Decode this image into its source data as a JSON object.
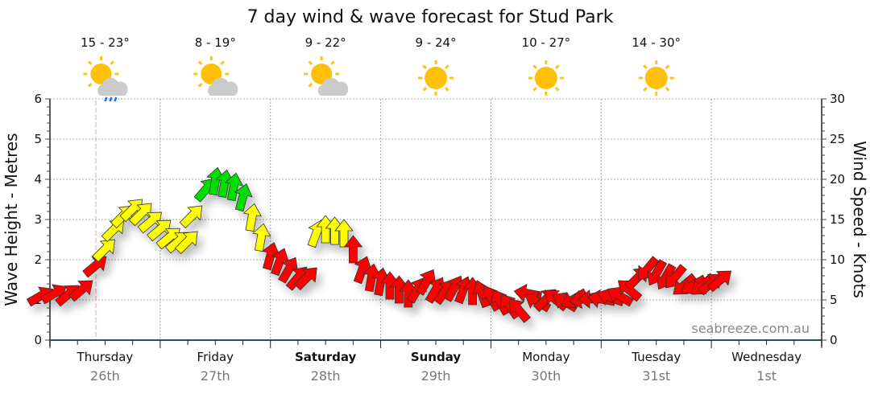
{
  "chart_data": {
    "type": "scatter",
    "title": "7 day wind & wave forecast for Stud Park",
    "ylabel_left": "Wave Height - Metres",
    "ylabel_right": "Wind Speed - Knots",
    "ylim_left": [
      0,
      6
    ],
    "ylim_right": [
      0,
      30
    ],
    "yticks_left": [
      "0",
      "1",
      "2",
      "3",
      "4",
      "5",
      "6"
    ],
    "yticks_right": [
      "0",
      "5",
      "10",
      "15",
      "20",
      "25",
      "30"
    ],
    "grid": true,
    "days": [
      {
        "name": "Thursday",
        "date": "26th",
        "bold": false,
        "temp": "15 - 23°",
        "icon": "sun-cloud-rain-icon"
      },
      {
        "name": "Friday",
        "date": "27th",
        "bold": false,
        "temp": "8 - 19°",
        "icon": "sun-cloud-icon"
      },
      {
        "name": "Saturday",
        "date": "28th",
        "bold": true,
        "temp": "9 - 22°",
        "icon": "sun-cloud-icon"
      },
      {
        "name": "Sunday",
        "date": "29th",
        "bold": true,
        "temp": "9 - 24°",
        "icon": "sun-icon"
      },
      {
        "name": "Monday",
        "date": "30th",
        "bold": false,
        "temp": "10 - 27°",
        "icon": "sun-icon"
      },
      {
        "name": "Tuesday",
        "date": "31st",
        "bold": false,
        "temp": "14 - 30°",
        "icon": "sun-icon"
      },
      {
        "name": "Wednesday",
        "date": "1st",
        "bold": false
      }
    ],
    "now_hour": 10,
    "colors": {
      "red": "#ff0000",
      "yellow": "#ffff00",
      "green": "#00dd00"
    },
    "wind_series_fields": [
      "hour_from_thursday",
      "knots",
      "direction_deg",
      "color"
    ],
    "wind": [
      [
        -2,
        5.5,
        60,
        "red"
      ],
      [
        1,
        5.8,
        60,
        "red"
      ],
      [
        4,
        5.7,
        50,
        "red"
      ],
      [
        7,
        6.3,
        50,
        "red"
      ],
      [
        10,
        9.3,
        50,
        "red"
      ],
      [
        12,
        11.3,
        45,
        "yellow"
      ],
      [
        14,
        13.8,
        45,
        "yellow"
      ],
      [
        16,
        15.5,
        45,
        "yellow"
      ],
      [
        18,
        16.3,
        45,
        "yellow"
      ],
      [
        20,
        15.8,
        45,
        "yellow"
      ],
      [
        22,
        14.8,
        50,
        "yellow"
      ],
      [
        24,
        13.8,
        50,
        "yellow"
      ],
      [
        26,
        12.8,
        50,
        "yellow"
      ],
      [
        28,
        12.3,
        50,
        "yellow"
      ],
      [
        30,
        12.3,
        45,
        "yellow"
      ],
      [
        31,
        15.5,
        45,
        "yellow"
      ],
      [
        34,
        18.8,
        40,
        "green"
      ],
      [
        36,
        19.8,
        10,
        "green"
      ],
      [
        38,
        19.5,
        10,
        "green"
      ],
      [
        40,
        19.1,
        10,
        "green"
      ],
      [
        42,
        17.8,
        15,
        "green"
      ],
      [
        44,
        15.3,
        10,
        "yellow"
      ],
      [
        46,
        12.8,
        10,
        "yellow"
      ],
      [
        48,
        10.5,
        15,
        "red"
      ],
      [
        50,
        9.8,
        20,
        "red"
      ],
      [
        52,
        8.8,
        30,
        "red"
      ],
      [
        54,
        7.8,
        40,
        "red"
      ],
      [
        56,
        7.8,
        45,
        "red"
      ],
      [
        58,
        13.3,
        20,
        "yellow"
      ],
      [
        60,
        13.8,
        0,
        "yellow"
      ],
      [
        62,
        13.6,
        0,
        "yellow"
      ],
      [
        64,
        13.3,
        0,
        "yellow"
      ],
      [
        66,
        11.3,
        0,
        "red"
      ],
      [
        68,
        8.8,
        20,
        "red"
      ],
      [
        70,
        7.8,
        10,
        "red"
      ],
      [
        72,
        7.3,
        10,
        "red"
      ],
      [
        74,
        6.8,
        0,
        "red"
      ],
      [
        76,
        6.3,
        0,
        "red"
      ],
      [
        78,
        5.8,
        0,
        "red"
      ],
      [
        80,
        6.3,
        30,
        "red"
      ],
      [
        82,
        7.3,
        30,
        "red"
      ],
      [
        84,
        6.3,
        30,
        "red"
      ],
      [
        86,
        6.1,
        35,
        "red"
      ],
      [
        88,
        6.5,
        30,
        "red"
      ],
      [
        90,
        6.3,
        20,
        "red"
      ],
      [
        92,
        6.1,
        0,
        "red"
      ],
      [
        94,
        5.8,
        -20,
        "red"
      ],
      [
        96,
        5.3,
        -30,
        "red"
      ],
      [
        98,
        4.8,
        -30,
        "red"
      ],
      [
        100,
        4.3,
        -35,
        "red"
      ],
      [
        102,
        3.8,
        -40,
        "red"
      ],
      [
        104,
        5.8,
        -80,
        "red"
      ],
      [
        106,
        4.8,
        -60,
        "red"
      ],
      [
        108,
        5.1,
        45,
        "red"
      ],
      [
        110,
        5.1,
        -50,
        "red"
      ],
      [
        112,
        4.8,
        -60,
        "red"
      ],
      [
        114,
        5.1,
        -120,
        "red"
      ],
      [
        116,
        5.1,
        -100,
        "red"
      ],
      [
        118,
        5.1,
        -90,
        "red"
      ],
      [
        120,
        5.1,
        -80,
        "red"
      ],
      [
        122,
        5.3,
        -70,
        "red"
      ],
      [
        124,
        5.5,
        -60,
        "red"
      ],
      [
        126,
        6.3,
        -50,
        "red"
      ],
      [
        128,
        7.8,
        45,
        "red"
      ],
      [
        130,
        8.8,
        -140,
        "red"
      ],
      [
        132,
        8.3,
        -150,
        "red"
      ],
      [
        134,
        7.8,
        -150,
        "red"
      ],
      [
        136,
        7.8,
        -140,
        "red"
      ],
      [
        138,
        6.8,
        -130,
        "red"
      ],
      [
        140,
        6.8,
        -120,
        "red"
      ],
      [
        142,
        6.8,
        -130,
        "red"
      ],
      [
        144,
        7.1,
        50,
        "red"
      ],
      [
        146,
        7.5,
        50,
        "red"
      ]
    ]
  },
  "watermark": "seabreeze.com.au"
}
